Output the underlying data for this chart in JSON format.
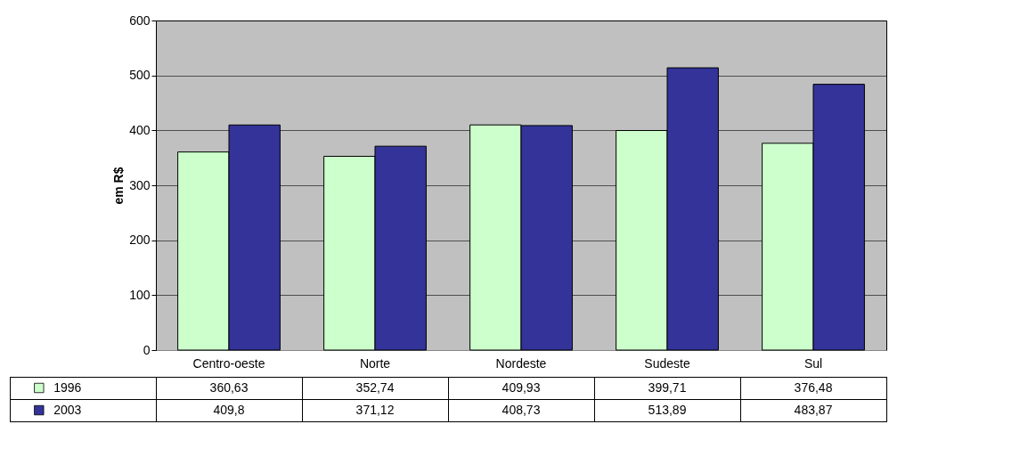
{
  "chart_data": {
    "type": "bar",
    "ylabel": "em R$",
    "categories": [
      "Centro-oeste",
      "Norte",
      "Nordeste",
      "Sudeste",
      "Sul"
    ],
    "series": [
      {
        "name": "1996",
        "color": "#ccffcc",
        "values": [
          360.63,
          352.74,
          409.93,
          399.71,
          376.48
        ],
        "value_labels": [
          "360,63",
          "352,74",
          "409,93",
          "399,71",
          "376,48"
        ]
      },
      {
        "name": "2003",
        "color": "#333399",
        "values": [
          409.8,
          371.12,
          408.73,
          513.89,
          483.87
        ],
        "value_labels": [
          "409,8",
          "371,12",
          "408,73",
          "513,89",
          "483,87"
        ]
      }
    ],
    "ylim": [
      0,
      600
    ],
    "yticks": [
      0,
      100,
      200,
      300,
      400,
      500,
      600
    ],
    "grid": "y",
    "legend": "bottom left"
  }
}
